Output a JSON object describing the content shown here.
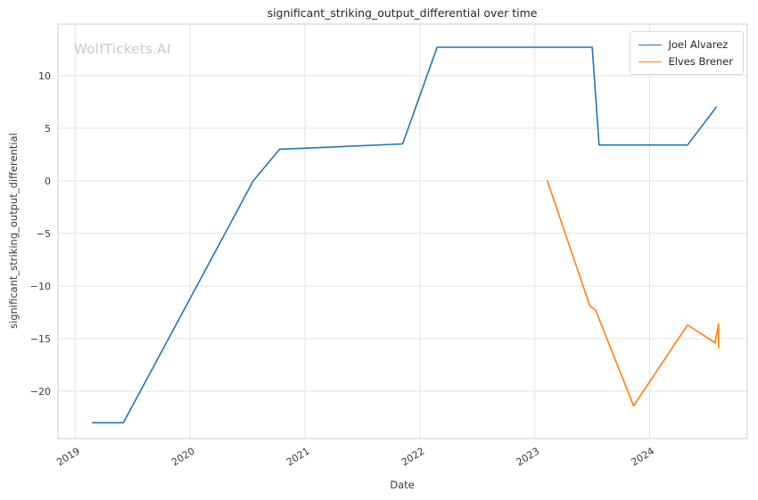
{
  "watermark": "WolfTickets.AI",
  "chart_data": {
    "type": "line",
    "title": "significant_striking_output_differential over time",
    "xlabel": "Date",
    "ylabel": "significant_striking_output_differential",
    "xlim": [
      2018.85,
      2024.85
    ],
    "ylim": [
      -24.5,
      14.9
    ],
    "x_ticks": [
      2019,
      2020,
      2021,
      2022,
      2023,
      2024
    ],
    "y_ticks": [
      10,
      5,
      0,
      -5,
      -10,
      -15,
      -20
    ],
    "grid": true,
    "legend_position": "upper right",
    "grid_color": "#e2e2e2",
    "border_color": "#d4d4d4",
    "series": [
      {
        "name": "Joel Alvarez",
        "color": "#1f77b4",
        "points": [
          [
            2019.15,
            -23.0
          ],
          [
            2019.42,
            -23.0
          ],
          [
            2020.55,
            0.0
          ],
          [
            2020.78,
            3.0
          ],
          [
            2021.0,
            3.1
          ],
          [
            2021.85,
            3.5
          ],
          [
            2022.15,
            12.7
          ],
          [
            2023.5,
            12.7
          ],
          [
            2023.56,
            3.4
          ],
          [
            2024.33,
            3.4
          ],
          [
            2024.58,
            7.0
          ]
        ]
      },
      {
        "name": "Elves Brener",
        "color": "#ff7f0e",
        "points": [
          [
            2023.11,
            0.0
          ],
          [
            2023.48,
            -11.9
          ],
          [
            2023.53,
            -12.3
          ],
          [
            2023.86,
            -21.4
          ],
          [
            2024.33,
            -13.7
          ],
          [
            2024.57,
            -15.4
          ],
          [
            2024.6,
            -13.6
          ],
          [
            2024.6,
            -15.9
          ]
        ]
      }
    ]
  }
}
